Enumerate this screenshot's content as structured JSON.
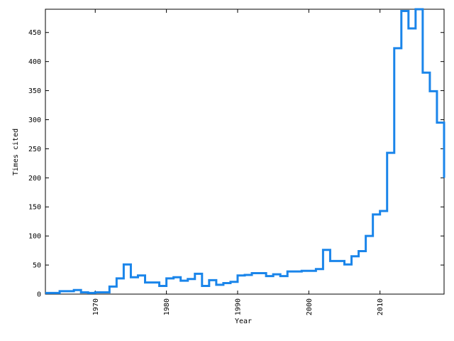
{
  "chart_data": {
    "type": "line",
    "step": true,
    "xlabel": "Year",
    "ylabel": "Times cited",
    "xlim": [
      1963,
      2019
    ],
    "ylim": [
      0,
      490
    ],
    "xticks": [
      1970,
      1980,
      1990,
      2000,
      2010
    ],
    "yticks": [
      0,
      50,
      100,
      150,
      200,
      250,
      300,
      350,
      400,
      450
    ],
    "grid": false,
    "line_color": "#1a85ea",
    "series": [
      {
        "x": [
          1963,
          1964,
          1965,
          1966,
          1967,
          1968,
          1969,
          1970,
          1971,
          1972,
          1973,
          1974,
          1975,
          1976,
          1977,
          1978,
          1979,
          1980,
          1981,
          1982,
          1983,
          1984,
          1985,
          1986,
          1987,
          1988,
          1989,
          1990,
          1991,
          1992,
          1993,
          1994,
          1995,
          1996,
          1997,
          1998,
          1999,
          2000,
          2001,
          2002,
          2003,
          2004,
          2005,
          2006,
          2007,
          2008,
          2009,
          2010,
          2011,
          2012,
          2013,
          2014,
          2015,
          2016,
          2017,
          2018
        ],
        "values": [
          2,
          2,
          5,
          5,
          7,
          3,
          2,
          3,
          3,
          13,
          27,
          51,
          29,
          32,
          20,
          20,
          14,
          27,
          29,
          23,
          26,
          35,
          14,
          24,
          16,
          19,
          21,
          32,
          33,
          36,
          36,
          31,
          34,
          31,
          39,
          39,
          40,
          40,
          43,
          76,
          57,
          57,
          51,
          65,
          74,
          100,
          137,
          143,
          243,
          423,
          487,
          457,
          490,
          381,
          349,
          295
        ]
      }
    ]
  }
}
